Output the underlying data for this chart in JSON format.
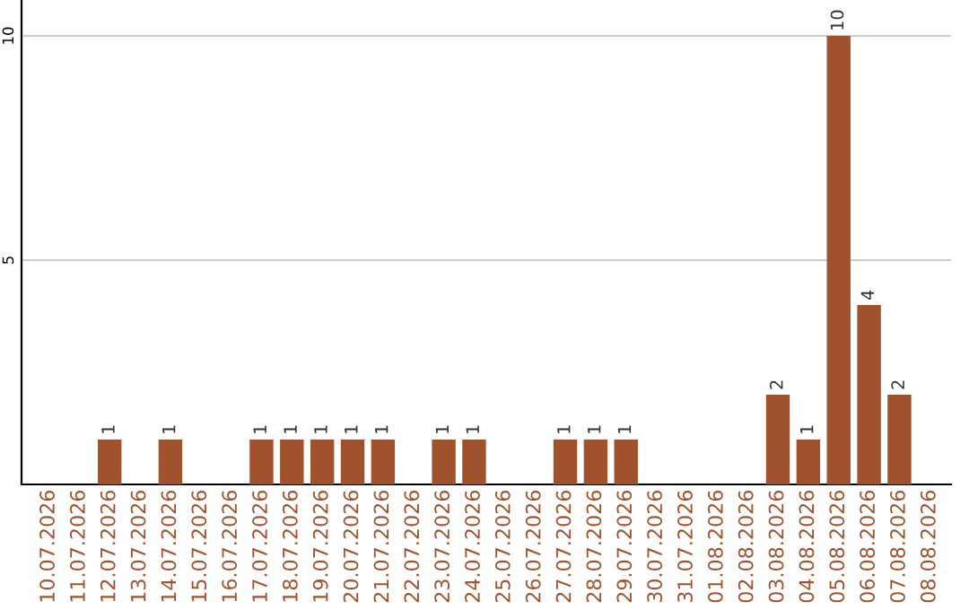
{
  "chart_data": {
    "type": "bar",
    "categories": [
      "10.07.2026",
      "11.07.2026",
      "12.07.2026",
      "13.07.2026",
      "14.07.2026",
      "15.07.2026",
      "16.07.2026",
      "17.07.2026",
      "18.07.2026",
      "19.07.2026",
      "20.07.2026",
      "21.07.2026",
      "22.07.2026",
      "23.07.2026",
      "24.07.2026",
      "25.07.2026",
      "26.07.2026",
      "27.07.2026",
      "28.07.2026",
      "29.07.2026",
      "30.07.2026",
      "31.07.2026",
      "01.08.2026",
      "02.08.2026",
      "03.08.2026",
      "04.08.2026",
      "05.08.2026",
      "06.08.2026",
      "07.08.2026",
      "08.08.2026"
    ],
    "values": [
      0,
      0,
      1,
      0,
      1,
      0,
      0,
      1,
      1,
      1,
      1,
      1,
      0,
      1,
      1,
      0,
      0,
      1,
      1,
      1,
      0,
      0,
      0,
      0,
      2,
      1,
      10,
      4,
      2,
      0
    ],
    "value_labels": [
      null,
      null,
      "1",
      null,
      "1",
      null,
      null,
      "1",
      "1",
      "1",
      "1",
      "1",
      null,
      "1",
      "1",
      null,
      null,
      "1",
      "1",
      "1",
      null,
      null,
      null,
      null,
      "2",
      "1",
      "10",
      "4",
      "2",
      null
    ],
    "color": "#a0522d",
    "ylim": [
      0,
      10.8
    ],
    "yticks": [
      5,
      10
    ],
    "grid": "y"
  }
}
